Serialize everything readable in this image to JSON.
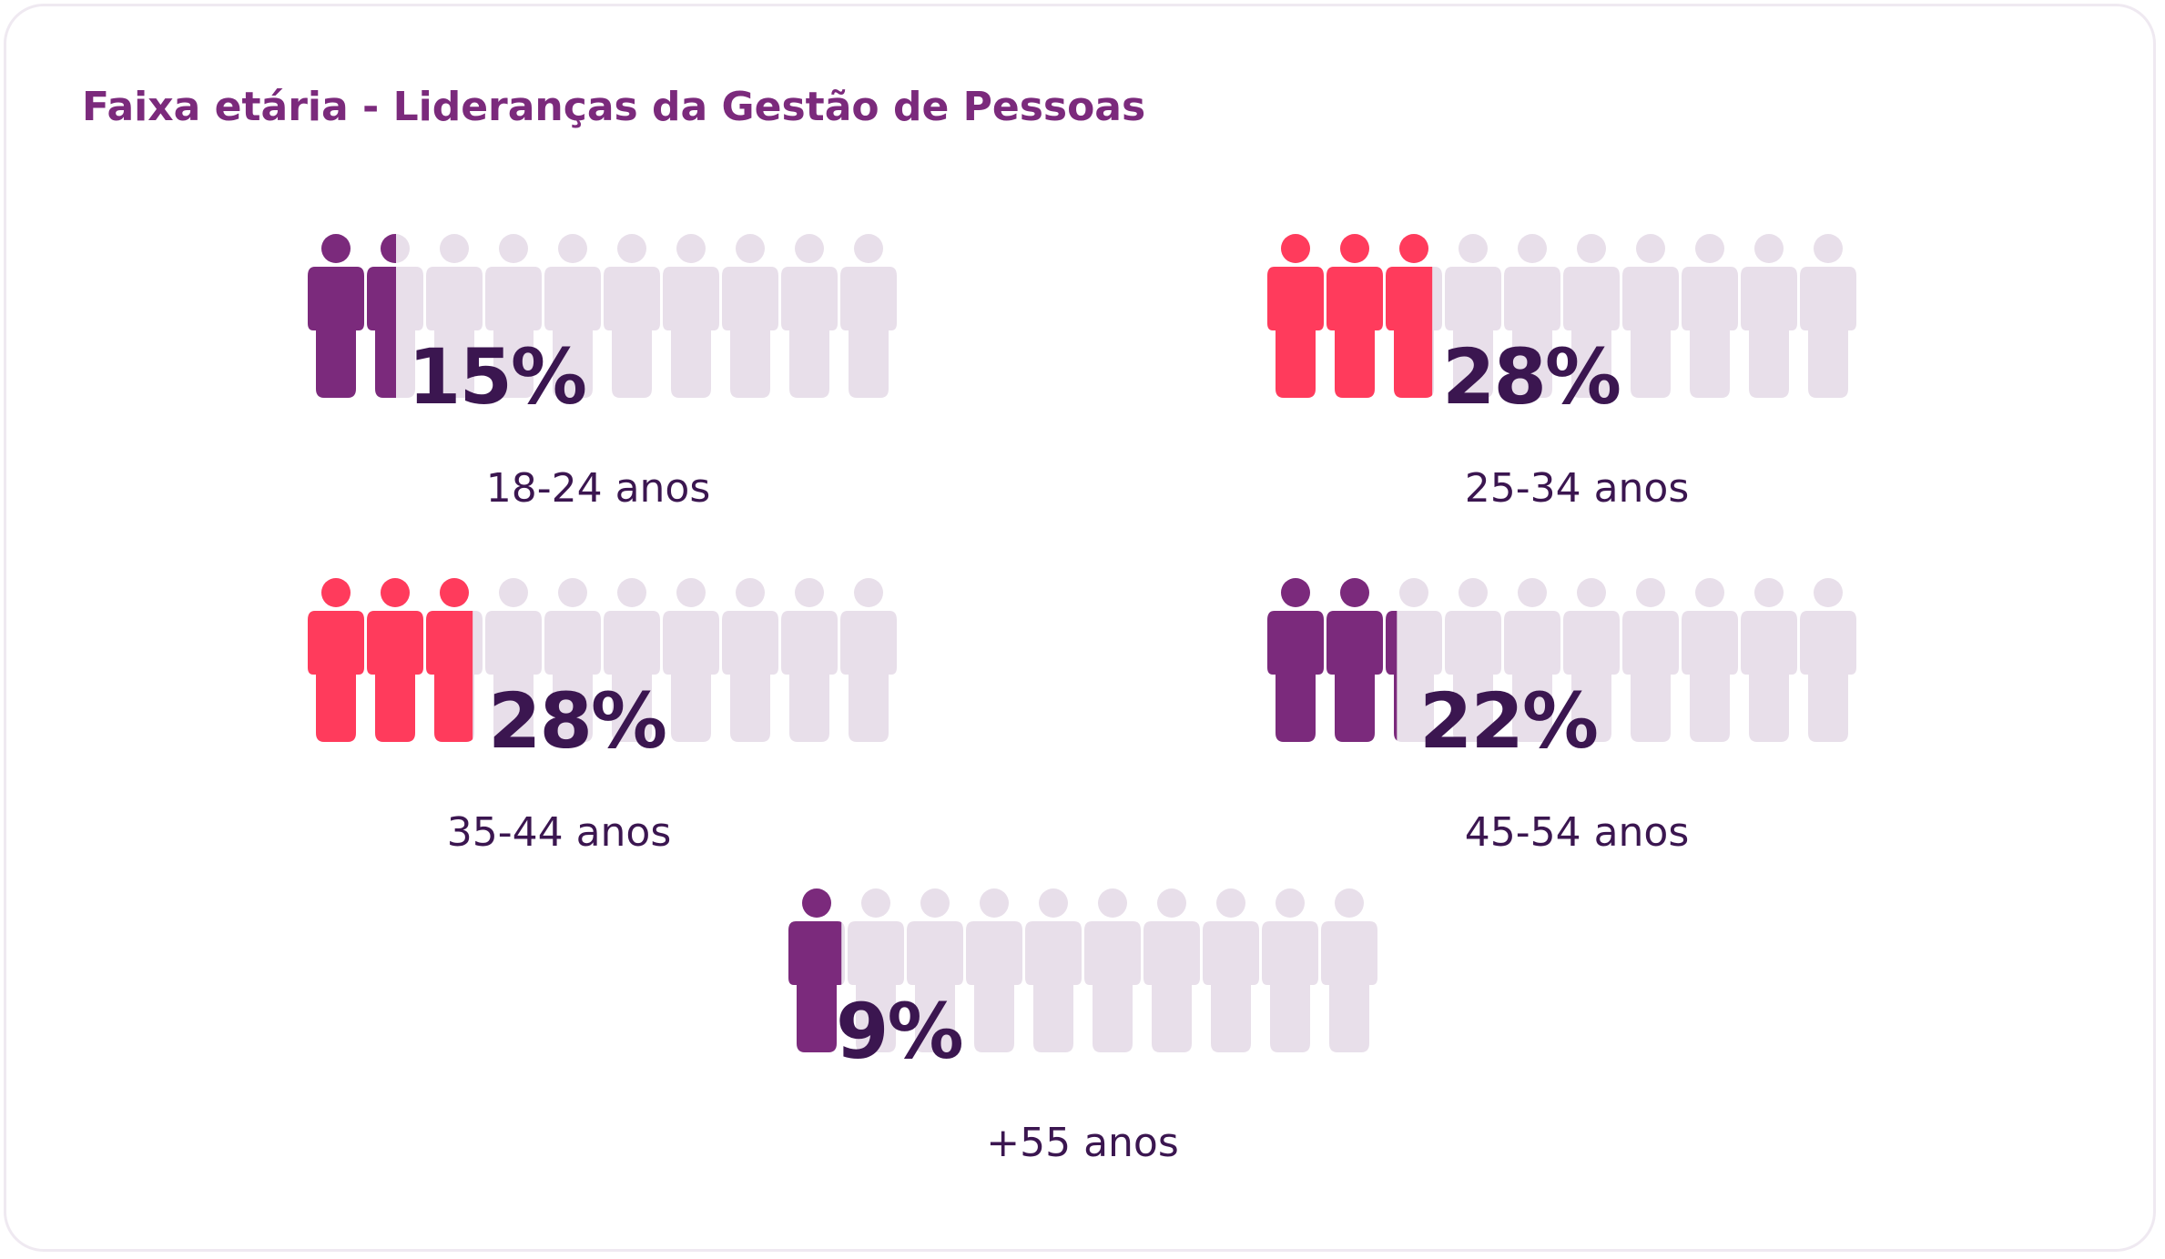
{
  "title": "Faixa etária - Lideranças da Gestão de Pessoas",
  "colors": {
    "purple": "#7b2a7c",
    "red": "#ff3b5c",
    "inactive": "#e8dfea",
    "text_dark": "#3b1650",
    "border": "#efe9f1"
  },
  "icon": "person-in-suit-icon",
  "chart_data": {
    "type": "pictogram",
    "title": "Faixa etária - Lideranças da Gestão de Pessoas",
    "icons_per_row": 10,
    "series": [
      {
        "category": "18-24 anos",
        "value": 15,
        "label": "15%",
        "color": "#7b2a7c"
      },
      {
        "category": "25-34 anos",
        "value": 28,
        "label": "28%",
        "color": "#ff3b5c"
      },
      {
        "category": "35-44 anos",
        "value": 28,
        "label": "28%",
        "color": "#ff3b5c"
      },
      {
        "category": "45-54 anos",
        "value": 22,
        "label": "22%",
        "color": "#7b2a7c"
      },
      {
        "category": "+55 anos",
        "value": 9,
        "label": "9%",
        "color": "#7b2a7c"
      }
    ]
  }
}
